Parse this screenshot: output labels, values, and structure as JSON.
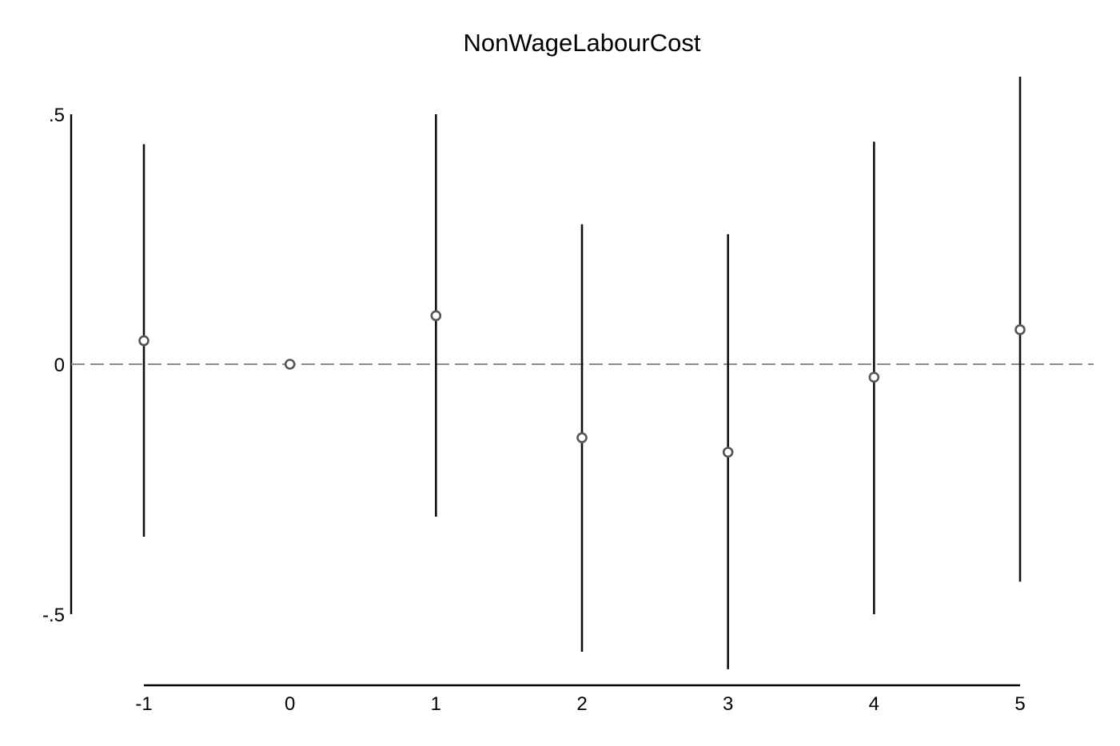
{
  "chart_data": {
    "type": "scatter",
    "title": "NonWageLabourCost",
    "xlabel": "",
    "ylabel": "",
    "x": [
      -1,
      0,
      1,
      2,
      3,
      4,
      5
    ],
    "y": [
      0.047,
      0.0,
      0.097,
      -0.147,
      -0.176,
      -0.026,
      0.069
    ],
    "ci_low": [
      -0.345,
      null,
      -0.305,
      -0.575,
      -0.61,
      -0.5,
      -0.435
    ],
    "ci_high": [
      0.44,
      null,
      0.5,
      0.28,
      0.26,
      0.445,
      0.575
    ],
    "xlim": [
      -1,
      5
    ],
    "ylim": [
      -0.5,
      0.5
    ],
    "x_ticks": [
      -1,
      0,
      1,
      2,
      3,
      4,
      5
    ],
    "x_tick_labels": [
      "-1",
      "0",
      "1",
      "2",
      "3",
      "4",
      "5"
    ],
    "y_ticks": [
      0.5,
      0,
      -0.5
    ],
    "y_tick_labels": [
      ".5",
      "0",
      "-.5"
    ],
    "reference_line": {
      "y": 0,
      "style": "dashed",
      "color": "#8c8c8c"
    },
    "grid": false,
    "legend": "none",
    "colors": {
      "marker": "#555555",
      "error_bar": "#111111",
      "axis": "#000000"
    }
  }
}
